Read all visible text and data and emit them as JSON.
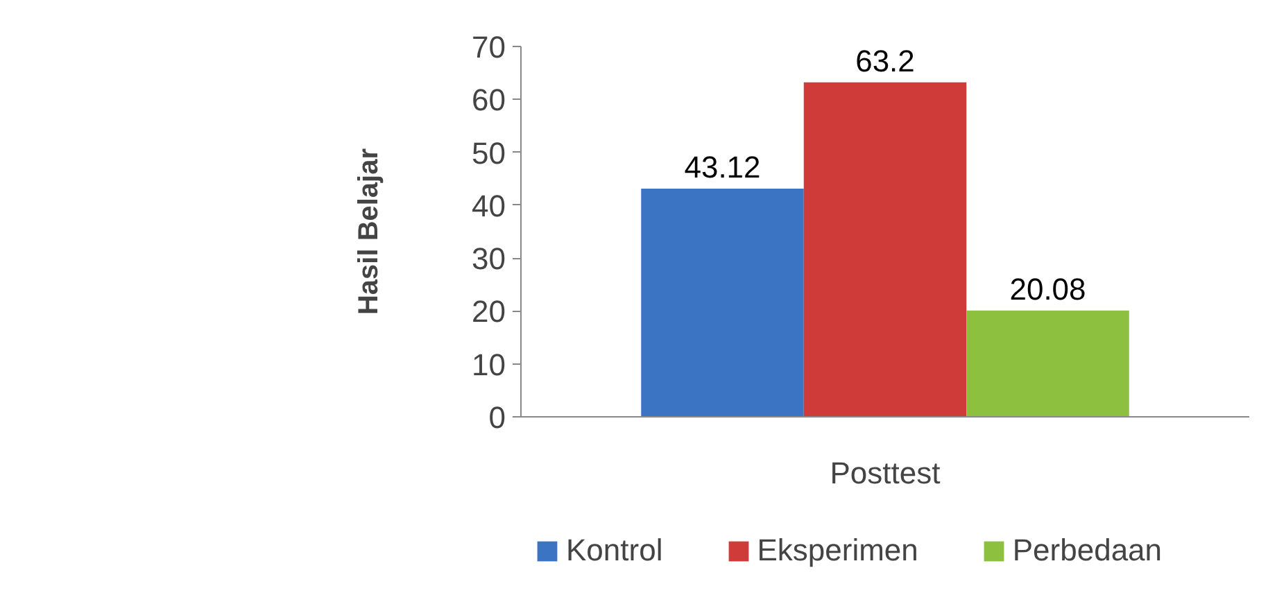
{
  "chart_data": {
    "type": "bar",
    "ylabel": "Hasil Belajar",
    "categories": [
      "Posttest"
    ],
    "series": [
      {
        "name": "Kontrol",
        "color": "#3a74c2",
        "values": [
          43.12
        ]
      },
      {
        "name": "Eksperimen",
        "color": "#cf3b38",
        "values": [
          63.2
        ]
      },
      {
        "name": "Perbedaan",
        "color": "#8dc03f",
        "values": [
          20.08
        ]
      }
    ],
    "ylim": [
      0,
      70
    ],
    "yticks": [
      0,
      10,
      20,
      30,
      40,
      50,
      60,
      70
    ],
    "data_labels": true,
    "legend": "bottom",
    "grid": false
  }
}
